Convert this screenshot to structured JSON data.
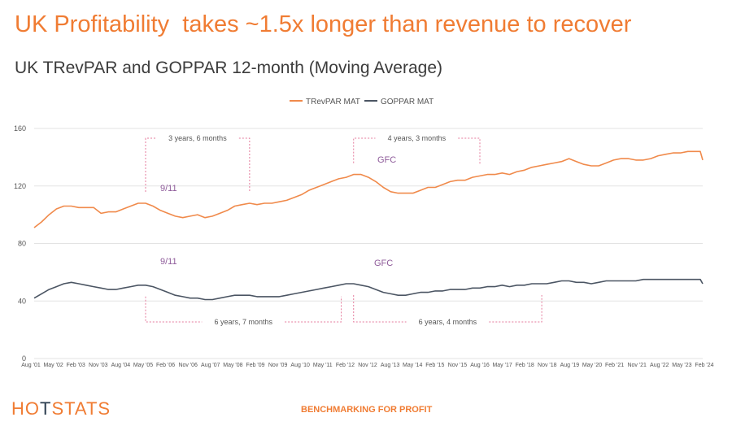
{
  "page": {
    "headline": "UK Profitability  takes ~1.5x longer than revenue to recover",
    "subtitle": "UK TRevPAR and GOPPAR 12-month (Moving Average)",
    "logo": {
      "left": "HO",
      "mid": "T",
      "right": "STATS"
    },
    "tagline": "BENCHMARKING FOR PROFIT"
  },
  "colors": {
    "trevpar": "#f08a4b",
    "goppar": "#4b5563",
    "annotation": "#8e5b9a",
    "dashed": "#e57b9c",
    "grid": "#e3e3e3"
  },
  "chart_data": {
    "type": "line",
    "title": "UK TRevPAR and GOPPAR 12-month (Moving Average)",
    "legend_position": "top",
    "grid": true,
    "ylim": [
      0,
      160
    ],
    "y_ticks": [
      0,
      40,
      80,
      120,
      160
    ],
    "x_range": [
      "2001-08",
      "2024-02"
    ],
    "x_tick_labels": [
      "Aug '01",
      "May '02",
      "Feb '03",
      "Nov '03",
      "Aug '04",
      "May '05",
      "Feb '06",
      "Nov '06",
      "Aug '07",
      "May '08",
      "Feb '09",
      "Nov '09",
      "Aug '10",
      "May '11",
      "Feb '12",
      "Nov '12",
      "Aug '13",
      "May '14",
      "Feb '15",
      "Nov '15",
      "Aug '16",
      "May '17",
      "Feb '18",
      "Nov '18",
      "Aug '19",
      "May '20",
      "Feb '21",
      "Nov '21",
      "Aug '22",
      "May '23",
      "Feb '24"
    ],
    "series": [
      {
        "name": "TRevPAR MAT",
        "points": [
          [
            "2001-08",
            91
          ],
          [
            "2001-11",
            95
          ],
          [
            "2002-02",
            100
          ],
          [
            "2002-05",
            104
          ],
          [
            "2002-08",
            106
          ],
          [
            "2002-11",
            106
          ],
          [
            "2003-02",
            105
          ],
          [
            "2003-05",
            105
          ],
          [
            "2003-08",
            105
          ],
          [
            "2003-11",
            101
          ],
          [
            "2004-02",
            102
          ],
          [
            "2004-05",
            102
          ],
          [
            "2004-08",
            104
          ],
          [
            "2004-11",
            106
          ],
          [
            "2005-02",
            108
          ],
          [
            "2005-05",
            108
          ],
          [
            "2005-08",
            106
          ],
          [
            "2005-11",
            103
          ],
          [
            "2006-02",
            101
          ],
          [
            "2006-05",
            99
          ],
          [
            "2006-08",
            98
          ],
          [
            "2006-11",
            99
          ],
          [
            "2007-02",
            100
          ],
          [
            "2007-05",
            98
          ],
          [
            "2007-08",
            99
          ],
          [
            "2007-11",
            101
          ],
          [
            "2008-02",
            103
          ],
          [
            "2008-05",
            106
          ],
          [
            "2008-08",
            107
          ],
          [
            "2008-11",
            108
          ],
          [
            "2009-02",
            107
          ],
          [
            "2009-05",
            108
          ],
          [
            "2009-08",
            108
          ],
          [
            "2009-11",
            109
          ],
          [
            "2010-02",
            110
          ],
          [
            "2010-05",
            112
          ],
          [
            "2010-08",
            114
          ],
          [
            "2010-11",
            117
          ],
          [
            "2011-02",
            119
          ],
          [
            "2011-05",
            121
          ],
          [
            "2011-08",
            123
          ],
          [
            "2011-11",
            125
          ],
          [
            "2012-02",
            126
          ],
          [
            "2012-05",
            128
          ],
          [
            "2012-08",
            128
          ],
          [
            "2012-11",
            126
          ],
          [
            "2013-02",
            123
          ],
          [
            "2013-05",
            119
          ],
          [
            "2013-08",
            116
          ],
          [
            "2013-11",
            115
          ],
          [
            "2014-02",
            115
          ],
          [
            "2014-05",
            115
          ],
          [
            "2014-08",
            117
          ],
          [
            "2014-11",
            119
          ],
          [
            "2015-02",
            119
          ],
          [
            "2015-05",
            121
          ],
          [
            "2015-08",
            123
          ],
          [
            "2015-11",
            124
          ],
          [
            "2016-02",
            124
          ],
          [
            "2016-05",
            126
          ],
          [
            "2016-08",
            127
          ],
          [
            "2016-11",
            128
          ],
          [
            "2017-02",
            128
          ],
          [
            "2017-05",
            129
          ],
          [
            "2017-08",
            128
          ],
          [
            "2017-11",
            130
          ],
          [
            "2018-02",
            131
          ],
          [
            "2018-05",
            133
          ],
          [
            "2018-08",
            134
          ],
          [
            "2018-11",
            135
          ],
          [
            "2019-02",
            136
          ],
          [
            "2019-05",
            137
          ],
          [
            "2019-08",
            139
          ],
          [
            "2019-11",
            137
          ],
          [
            "2020-02",
            135
          ],
          [
            "2020-05",
            134
          ],
          [
            "2020-08",
            134
          ],
          [
            "2020-11",
            136
          ],
          [
            "2021-02",
            138
          ],
          [
            "2021-05",
            139
          ],
          [
            "2021-08",
            139
          ],
          [
            "2021-11",
            138
          ],
          [
            "2022-02",
            138
          ],
          [
            "2022-05",
            139
          ],
          [
            "2022-08",
            141
          ],
          [
            "2022-11",
            142
          ],
          [
            "2023-02",
            143
          ],
          [
            "2023-05",
            143
          ],
          [
            "2023-08",
            144
          ],
          [
            "2023-11",
            144
          ],
          [
            "2024-01",
            144
          ],
          [
            "2024-02",
            138
          ]
        ]
      },
      {
        "name": "GOPPAR MAT",
        "points": [
          [
            "2001-08",
            42
          ],
          [
            "2001-11",
            45
          ],
          [
            "2002-02",
            48
          ],
          [
            "2002-05",
            50
          ],
          [
            "2002-08",
            52
          ],
          [
            "2002-11",
            53
          ],
          [
            "2003-02",
            52
          ],
          [
            "2003-05",
            51
          ],
          [
            "2003-08",
            50
          ],
          [
            "2003-11",
            49
          ],
          [
            "2004-02",
            48
          ],
          [
            "2004-05",
            48
          ],
          [
            "2004-08",
            49
          ],
          [
            "2004-11",
            50
          ],
          [
            "2005-02",
            51
          ],
          [
            "2005-05",
            51
          ],
          [
            "2005-08",
            50
          ],
          [
            "2005-11",
            48
          ],
          [
            "2006-02",
            46
          ],
          [
            "2006-05",
            44
          ],
          [
            "2006-08",
            43
          ],
          [
            "2006-11",
            42
          ],
          [
            "2007-02",
            42
          ],
          [
            "2007-05",
            41
          ],
          [
            "2007-08",
            41
          ],
          [
            "2007-11",
            42
          ],
          [
            "2008-02",
            43
          ],
          [
            "2008-05",
            44
          ],
          [
            "2008-08",
            44
          ],
          [
            "2008-11",
            44
          ],
          [
            "2009-02",
            43
          ],
          [
            "2009-05",
            43
          ],
          [
            "2009-08",
            43
          ],
          [
            "2009-11",
            43
          ],
          [
            "2010-02",
            44
          ],
          [
            "2010-05",
            45
          ],
          [
            "2010-08",
            46
          ],
          [
            "2010-11",
            47
          ],
          [
            "2011-02",
            48
          ],
          [
            "2011-05",
            49
          ],
          [
            "2011-08",
            50
          ],
          [
            "2011-11",
            51
          ],
          [
            "2012-02",
            52
          ],
          [
            "2012-05",
            52
          ],
          [
            "2012-08",
            51
          ],
          [
            "2012-11",
            50
          ],
          [
            "2013-02",
            48
          ],
          [
            "2013-05",
            46
          ],
          [
            "2013-08",
            45
          ],
          [
            "2013-11",
            44
          ],
          [
            "2014-02",
            44
          ],
          [
            "2014-05",
            45
          ],
          [
            "2014-08",
            46
          ],
          [
            "2014-11",
            46
          ],
          [
            "2015-02",
            47
          ],
          [
            "2015-05",
            47
          ],
          [
            "2015-08",
            48
          ],
          [
            "2015-11",
            48
          ],
          [
            "2016-02",
            48
          ],
          [
            "2016-05",
            49
          ],
          [
            "2016-08",
            49
          ],
          [
            "2016-11",
            50
          ],
          [
            "2017-02",
            50
          ],
          [
            "2017-05",
            51
          ],
          [
            "2017-08",
            50
          ],
          [
            "2017-11",
            51
          ],
          [
            "2018-02",
            51
          ],
          [
            "2018-05",
            52
          ],
          [
            "2018-08",
            52
          ],
          [
            "2018-11",
            52
          ],
          [
            "2019-02",
            53
          ],
          [
            "2019-05",
            54
          ],
          [
            "2019-08",
            54
          ],
          [
            "2019-11",
            53
          ],
          [
            "2020-02",
            53
          ],
          [
            "2020-05",
            52
          ],
          [
            "2020-08",
            53
          ],
          [
            "2020-11",
            54
          ],
          [
            "2021-02",
            54
          ],
          [
            "2021-05",
            54
          ],
          [
            "2021-08",
            54
          ],
          [
            "2021-11",
            54
          ],
          [
            "2022-02",
            55
          ],
          [
            "2022-05",
            55
          ],
          [
            "2022-08",
            55
          ],
          [
            "2022-11",
            55
          ],
          [
            "2023-02",
            55
          ],
          [
            "2023-05",
            55
          ],
          [
            "2023-08",
            55
          ],
          [
            "2023-11",
            55
          ],
          [
            "2024-01",
            55
          ],
          [
            "2024-02",
            52
          ]
        ]
      }
    ],
    "annotations": [
      {
        "text": "9/11",
        "date": "2001-09",
        "value": 118
      },
      {
        "text": "GFC",
        "date": "2008-09",
        "value": 138
      },
      {
        "text": "9/11",
        "date": "2001-09",
        "value": 67
      },
      {
        "text": "GFC",
        "date": "2008-09",
        "value": 63
      }
    ],
    "recovery_brackets": [
      {
        "label": "3 years, 6 months",
        "start": "2005-05",
        "end": "2008-11",
        "side": "top",
        "series": "TRevPAR MAT"
      },
      {
        "label": "4 years, 3 months",
        "start": "2012-05",
        "end": "2016-08",
        "side": "top",
        "series": "TRevPAR MAT"
      },
      {
        "label": "6 years, 7 months",
        "start": "2005-05",
        "end": "2011-12",
        "side": "bottom",
        "series": "GOPPAR MAT"
      },
      {
        "label": "6 years, 4 months",
        "start": "2012-05",
        "end": "2018-09",
        "side": "bottom",
        "series": "GOPPAR MAT"
      }
    ]
  }
}
